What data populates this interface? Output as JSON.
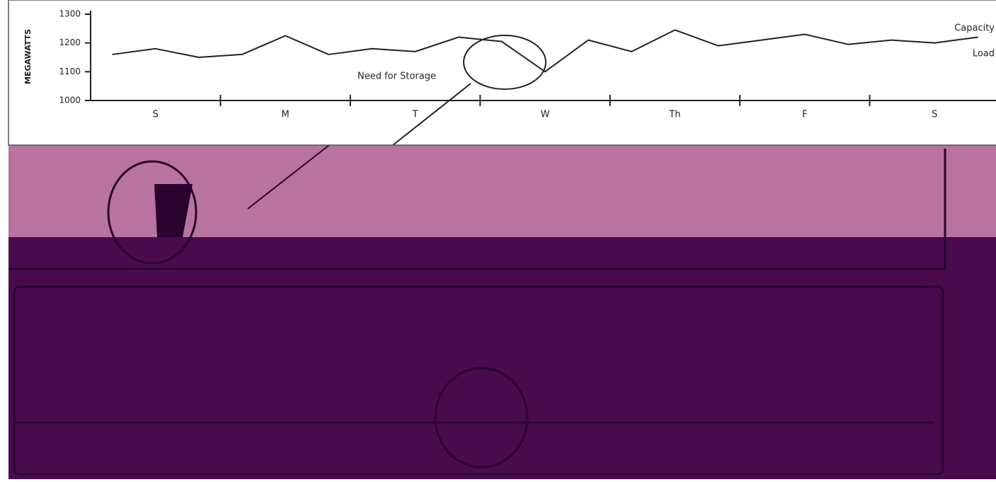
{
  "chart_data": {
    "type": "line",
    "y_label": "MEGAWATTS",
    "categories": [
      null,
      "S",
      null,
      null,
      "M",
      null,
      null,
      "T",
      null,
      null,
      "W",
      null,
      null,
      "Th",
      null,
      null,
      "F",
      null,
      null,
      "S",
      null
    ],
    "series": [
      {
        "name": "Load",
        "color": "#222222",
        "values": [
          1160,
          1180,
          1150,
          1160,
          1225,
          1160,
          1180,
          1170,
          1220,
          1205,
          1100,
          1210,
          1170,
          1245,
          1190,
          1210,
          1230,
          1195,
          1210,
          1200,
          1220
        ]
      }
    ],
    "annotations": [
      "Need for Storage",
      "Capacity",
      "Load"
    ],
    "ylim": [
      1000,
      1300
    ],
    "yticks": [
      1000,
      1100,
      1200,
      1300
    ]
  }
}
